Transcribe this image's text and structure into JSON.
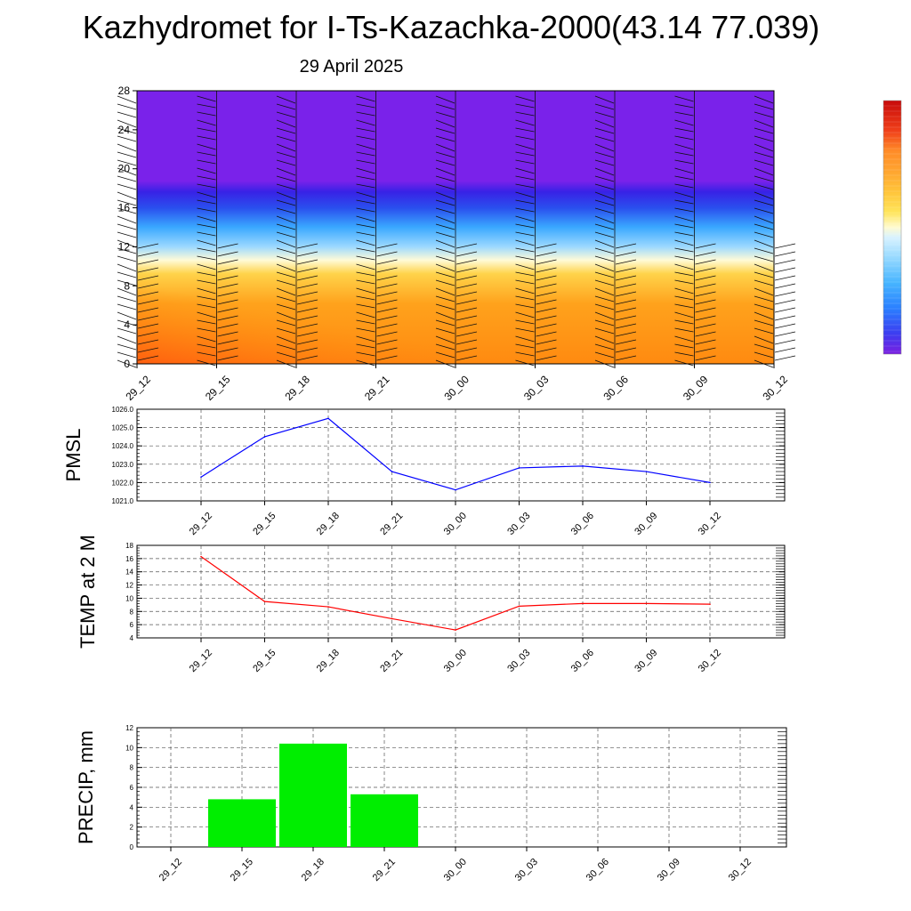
{
  "title": "Kazhydromet for I-Ts-Kazachka-2000(43.14 77.039)",
  "date": "29 April 2025",
  "time_labels": [
    "29_12",
    "29_15",
    "29_18",
    "29_21",
    "30_00",
    "30_03",
    "30_06",
    "30_09",
    "30_12"
  ],
  "chart_data": [
    {
      "type": "heatmap",
      "title": "",
      "ylim": [
        0,
        28
      ],
      "yticks": [
        "0",
        "4",
        "8",
        "12",
        "16",
        "20",
        "24",
        "28"
      ],
      "x": [
        "29_12",
        "29_15",
        "29_18",
        "29_21",
        "30_00",
        "30_03",
        "30_06",
        "30_09",
        "30_12"
      ],
      "description_layers_bottom_to_top": [
        "orange",
        "yellow",
        "light-blue",
        "blue",
        "purple"
      ],
      "colorbar_colors": [
        "#7a1fe0",
        "#3c3cf0",
        "#2a7fff",
        "#46b4ff",
        "#96d9ff",
        "#d8f2ff",
        "#fffbd0",
        "#ffe45a",
        "#ffc43a",
        "#ffa530",
        "#ff8c28",
        "#ff6a1e",
        "#f0401a",
        "#dc1e16",
        "#c80a0a"
      ],
      "wind_barbs": true
    },
    {
      "type": "line",
      "ylabel": "PMSL",
      "x": [
        "29_12",
        "29_15",
        "29_18",
        "29_21",
        "30_00",
        "30_03",
        "30_06",
        "30_09",
        "30_12"
      ],
      "values": [
        1022.3,
        1024.5,
        1025.5,
        1022.6,
        1021.6,
        1022.8,
        1022.9,
        1022.6,
        1022.0
      ],
      "ylim": [
        1021.0,
        1026.0
      ],
      "yticks": [
        "1021.0",
        "1022.0",
        "1023.0",
        "1024.0",
        "1025.0",
        "1026.0"
      ],
      "color": "#0000ff",
      "grid": true
    },
    {
      "type": "line",
      "ylabel": "TEMP at 2 M",
      "x": [
        "29_12",
        "29_15",
        "29_18",
        "29_21",
        "30_00",
        "30_03",
        "30_06",
        "30_09",
        "30_12"
      ],
      "values": [
        16.3,
        9.5,
        8.7,
        6.9,
        5.2,
        8.8,
        9.2,
        9.2,
        9.1
      ],
      "ylim": [
        4,
        18
      ],
      "yticks": [
        "4",
        "6",
        "8",
        "10",
        "12",
        "14",
        "16",
        "18"
      ],
      "color": "#ff0000",
      "grid": true
    },
    {
      "type": "bar",
      "ylabel": "PRECIP, mm",
      "categories": [
        "29_12",
        "29_15",
        "29_18",
        "29_21",
        "30_00",
        "30_03",
        "30_06",
        "30_09",
        "30_12"
      ],
      "values": [
        0,
        4.8,
        10.4,
        5.3,
        0,
        0,
        0,
        0,
        0
      ],
      "ylim": [
        0,
        12
      ],
      "yticks": [
        "0",
        "2",
        "4",
        "6",
        "8",
        "10",
        "12"
      ],
      "color": "#00ee00",
      "grid": true
    }
  ]
}
